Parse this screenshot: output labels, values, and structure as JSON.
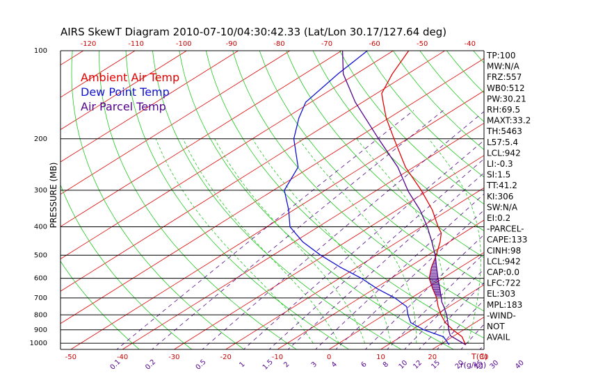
{
  "chart_data": {
    "type": "skew-t",
    "title": "AIRS SkewT Diagram 2010-07-10/04:30:42.33 (Lat/Lon 30.17/127.64 deg)",
    "ylabel": "PRESSURE (MB)",
    "x_units_label": "T(C)",
    "mixing_units_label": "r(g/kg)",
    "pressure_range": [
      1050,
      100
    ],
    "temperature_range_bottom": [
      -52,
      30
    ],
    "skew_per_decade": 90.5,
    "pressure_ticks": [
      1000,
      900,
      800,
      700,
      600,
      500,
      400,
      300,
      200,
      100
    ],
    "isobar_lines": [
      1000,
      900,
      800,
      700,
      600,
      500,
      400,
      300,
      200
    ],
    "bottom_temp_ticks": [
      -50,
      -40,
      -30,
      -20,
      -10,
      0,
      10,
      20,
      30
    ],
    "top_temp_ticks": [
      -120,
      -110,
      -100,
      -90,
      -80,
      -70,
      -60,
      -50,
      -40
    ],
    "mixing_ratio_labels": [
      "0.1",
      "0.2",
      "0.5",
      "1",
      "1.5",
      "2",
      "3",
      "4",
      "6",
      "8",
      "10",
      "12",
      "15",
      "20",
      "25",
      "30",
      "40"
    ],
    "mixing_ratio_values": [
      0.1,
      0.2,
      0.5,
      1,
      1.5,
      2,
      3,
      4,
      6,
      8,
      10,
      12,
      15,
      20,
      25,
      30,
      40
    ],
    "legend": [
      {
        "label": "Ambient Air Temp",
        "color": "#e00000"
      },
      {
        "label": "Dew Point Temp",
        "color": "#1010d0"
      },
      {
        "label": "Air Parcel Temp",
        "color": "#50008a"
      }
    ],
    "series": [
      {
        "name": "Ambient Air Temp",
        "color": "#e00000",
        "points": [
          [
            1012,
            25.0
          ],
          [
            950,
            21.8
          ],
          [
            900,
            17.9
          ],
          [
            850,
            14.2
          ],
          [
            800,
            11.0
          ],
          [
            750,
            7.9
          ],
          [
            700,
            4.9
          ],
          [
            650,
            1.2
          ],
          [
            600,
            -2.6
          ],
          [
            550,
            -5.6
          ],
          [
            500,
            -8.4
          ],
          [
            450,
            -11.8
          ],
          [
            420,
            -14.3
          ],
          [
            400,
            -16.8
          ],
          [
            350,
            -23.2
          ],
          [
            300,
            -31.4
          ],
          [
            250,
            -41.6
          ],
          [
            200,
            -52.6
          ],
          [
            170,
            -60.5
          ],
          [
            150,
            -66.0
          ],
          [
            140,
            -69.0
          ],
          [
            120,
            -73.0
          ],
          [
            100,
            -77.0
          ]
        ]
      },
      {
        "name": "Dew Point Temp",
        "color": "#1010d0",
        "points": [
          [
            1012,
            21.8
          ],
          [
            950,
            18.2
          ],
          [
            900,
            12.3
          ],
          [
            850,
            7.5
          ],
          [
            800,
            4.6
          ],
          [
            750,
            1.8
          ],
          [
            700,
            -3.2
          ],
          [
            650,
            -9.6
          ],
          [
            600,
            -15.7
          ],
          [
            550,
            -23.2
          ],
          [
            500,
            -30.8
          ],
          [
            450,
            -38.4
          ],
          [
            400,
            -45.5
          ],
          [
            350,
            -51.0
          ],
          [
            300,
            -57.9
          ],
          [
            250,
            -62.4
          ],
          [
            200,
            -72.0
          ],
          [
            170,
            -77.4
          ],
          [
            150,
            -81.0
          ],
          [
            120,
            -83.5
          ],
          [
            100,
            -85.0
          ]
        ]
      },
      {
        "name": "Air Parcel Temp",
        "color": "#50008a",
        "points": [
          [
            1012,
            25.0
          ],
          [
            980,
            22.4
          ],
          [
            942,
            19.2
          ],
          [
            900,
            17.1
          ],
          [
            850,
            14.7
          ],
          [
            800,
            12.1
          ],
          [
            750,
            9.0
          ],
          [
            722,
            7.1
          ],
          [
            700,
            5.8
          ],
          [
            650,
            2.6
          ],
          [
            600,
            -0.9
          ],
          [
            550,
            -4.6
          ],
          [
            500,
            -8.6
          ],
          [
            450,
            -13.4
          ],
          [
            400,
            -18.9
          ],
          [
            350,
            -25.6
          ],
          [
            303,
            -33.5
          ],
          [
            250,
            -43.1
          ],
          [
            200,
            -55.6
          ],
          [
            150,
            -71.4
          ],
          [
            120,
            -82.5
          ],
          [
            100,
            -89.8
          ]
        ]
      }
    ],
    "indices": [
      "TP:100",
      "MW:N/A",
      "FRZ:557",
      "WB0:512",
      "PW:30.21",
      "RH:69.5",
      "MAXT:33.2",
      "TH:5463",
      "L57:5.4",
      "LCL:942",
      "LI:-0.3",
      "SI:1.5",
      "TT:41.2",
      "KI:306",
      "SW:N/A",
      "EI:0.2",
      "-PARCEL-",
      "CAPE:133",
      "CINH:98",
      "LCL:942",
      "CAP:0.0",
      "LFC:722",
      "EL:303",
      "MPL:183",
      "-WIND-",
      "NOT",
      "AVAIL"
    ]
  }
}
